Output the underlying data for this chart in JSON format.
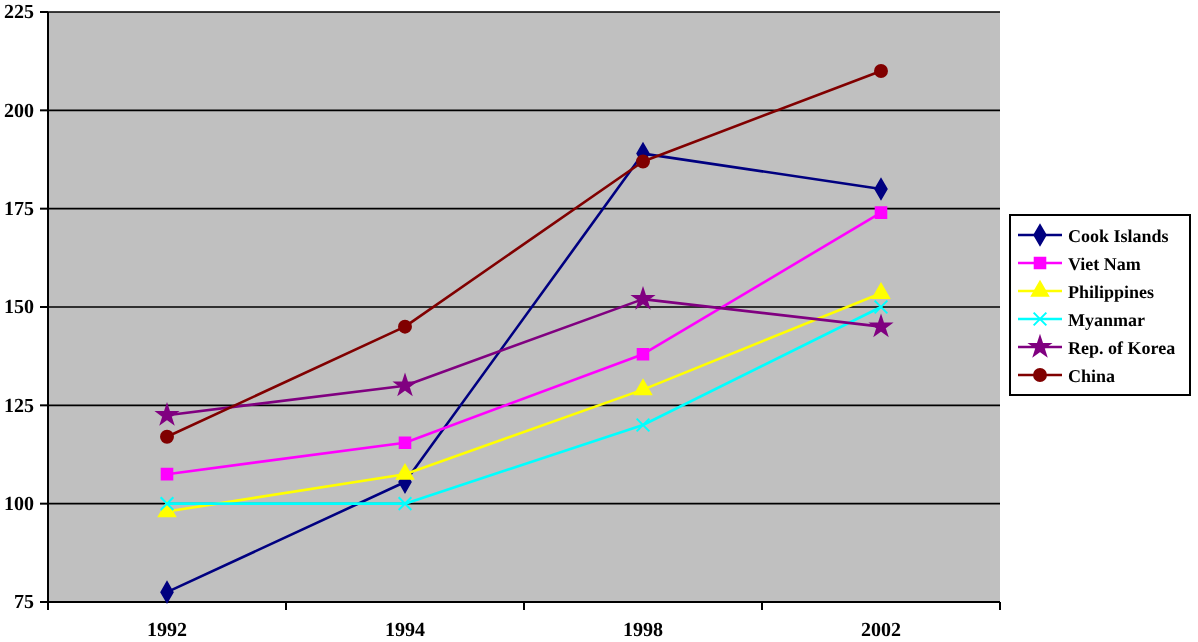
{
  "chart_data": {
    "type": "line",
    "categories": [
      "1992",
      "1994",
      "1998",
      "2002"
    ],
    "series": [
      {
        "name": "Cook Islands",
        "color": "#000080",
        "marker": "diamond",
        "values": [
          77.5,
          105.5,
          189,
          180
        ]
      },
      {
        "name": "Viet Nam",
        "color": "#ff00ff",
        "marker": "square",
        "values": [
          107.5,
          115.5,
          138,
          174
        ]
      },
      {
        "name": "Philippines",
        "color": "#ffff00",
        "marker": "triangle",
        "values": [
          98,
          107.5,
          129,
          153.5
        ]
      },
      {
        "name": "Myanmar",
        "color": "#00ffff",
        "marker": "cross",
        "values": [
          100,
          100,
          120,
          150
        ]
      },
      {
        "name": "Rep. of Korea",
        "color": "#800080",
        "marker": "star",
        "values": [
          122.5,
          130,
          152,
          145
        ]
      },
      {
        "name": "China",
        "color": "#800000",
        "marker": "circle",
        "values": [
          117,
          145,
          187,
          210
        ]
      }
    ],
    "ylim": [
      75,
      225
    ],
    "yticks": [
      75,
      100,
      125,
      150,
      175,
      200,
      225
    ],
    "grid": "y",
    "legend": "right"
  }
}
